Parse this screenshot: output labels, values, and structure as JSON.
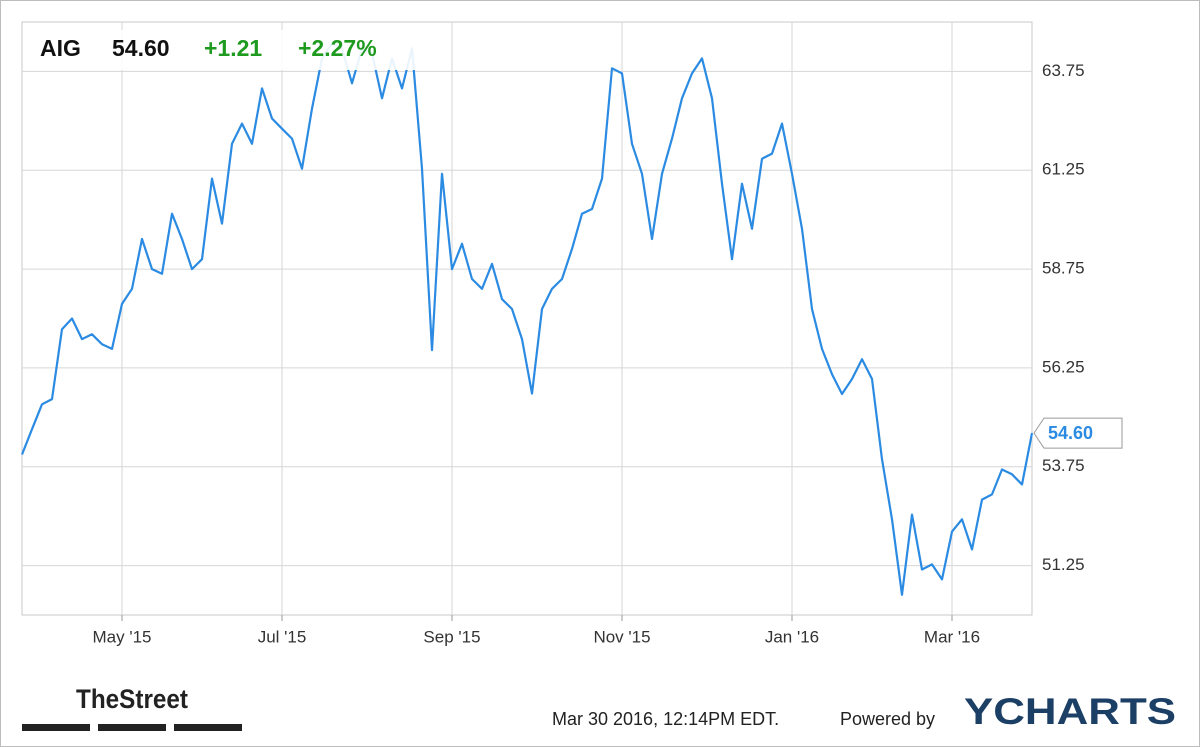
{
  "chart_data": {
    "type": "line",
    "ticker": "AIG",
    "price": "54.60",
    "change": "+1.21",
    "change_pct": "+2.27%",
    "categories": [
      null,
      null,
      null,
      null,
      null,
      null,
      null,
      null,
      null,
      null,
      "May '15",
      null,
      null,
      null,
      null,
      null,
      null,
      null,
      null,
      null,
      null,
      null,
      null,
      null,
      null,
      null,
      "Jul '15",
      null,
      null,
      null,
      null,
      null,
      null,
      null,
      null,
      null,
      null,
      null,
      null,
      null,
      null,
      null,
      null,
      "Sep '15",
      null,
      null,
      null,
      null,
      null,
      null,
      null,
      null,
      null,
      null,
      null,
      null,
      null,
      null,
      null,
      null,
      "Nov '15",
      null,
      null,
      null,
      null,
      null,
      null,
      null,
      null,
      null,
      null,
      null,
      null,
      null,
      null,
      null,
      null,
      "Jan '16",
      null,
      null,
      null,
      null,
      null,
      null,
      null,
      null,
      null,
      null,
      null,
      null,
      null,
      null,
      null,
      "Mar '16",
      null,
      null,
      null,
      null,
      null,
      null,
      null,
      null
    ],
    "values": [
      54.06,
      54.7,
      55.33,
      55.46,
      57.23,
      57.5,
      56.98,
      57.1,
      56.85,
      56.73,
      57.87,
      58.25,
      59.51,
      58.75,
      58.63,
      60.15,
      59.51,
      58.75,
      59.0,
      61.04,
      59.9,
      61.92,
      62.43,
      61.92,
      63.32,
      62.56,
      62.3,
      62.05,
      61.29,
      62.81,
      64.08,
      64.46,
      64.33,
      63.45,
      64.33,
      64.21,
      63.07,
      64.08,
      63.32,
      64.33,
      61.29,
      56.7,
      61.16,
      58.75,
      59.39,
      58.5,
      58.25,
      58.88,
      57.99,
      57.74,
      56.98,
      55.6,
      57.74,
      58.25,
      58.5,
      59.26,
      60.15,
      60.27,
      61.04,
      63.83,
      63.7,
      61.92,
      61.16,
      59.51,
      61.16,
      62.05,
      63.07,
      63.7,
      64.08,
      63.07,
      60.91,
      59.0,
      60.91,
      59.77,
      61.54,
      61.67,
      62.43,
      61.16,
      59.77,
      57.74,
      56.73,
      56.09,
      55.59,
      55.97,
      56.47,
      55.97,
      53.94,
      52.42,
      50.51,
      52.54,
      51.15,
      51.28,
      50.9,
      52.11,
      52.42,
      51.66,
      52.92,
      53.05,
      53.68,
      53.56,
      53.3,
      54.6
    ],
    "color": "#2b8be3",
    "ylim": [
      50,
      65
    ],
    "yticks": [
      51.25,
      53.75,
      56.25,
      58.75,
      61.25,
      63.75
    ],
    "grid": true,
    "source_logo": "TheStreet",
    "timestamp": "Mar 30 2016, 12:14PM EDT.",
    "powered_by": "Powered by",
    "brand": "YCHARTS"
  }
}
